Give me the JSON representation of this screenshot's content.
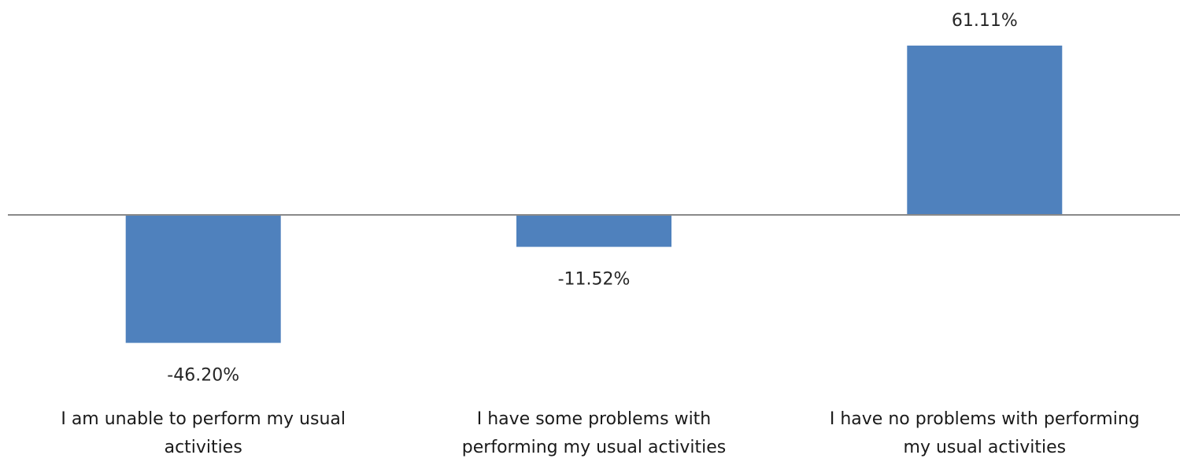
{
  "chart_data": {
    "type": "bar",
    "categories": [
      "I am unable to perform my usual activities",
      "I have some problems with performing my usual activities",
      "I have no problems with performing my usual activities"
    ],
    "category_lines": [
      [
        "I am unable to perform my usual",
        "activities"
      ],
      [
        "I have some problems with",
        "performing my usual activities"
      ],
      [
        "I have no problems with performing",
        "my usual activities"
      ]
    ],
    "values": [
      -46.2,
      -11.52,
      61.11
    ],
    "data_labels": [
      "-46.20%",
      "-11.52%",
      "61.11%"
    ],
    "ylim": [
      -61.11,
      61.11
    ],
    "grid": false,
    "legend": "none",
    "bar_color": "#4F81BD",
    "axis_color": "#898989"
  }
}
